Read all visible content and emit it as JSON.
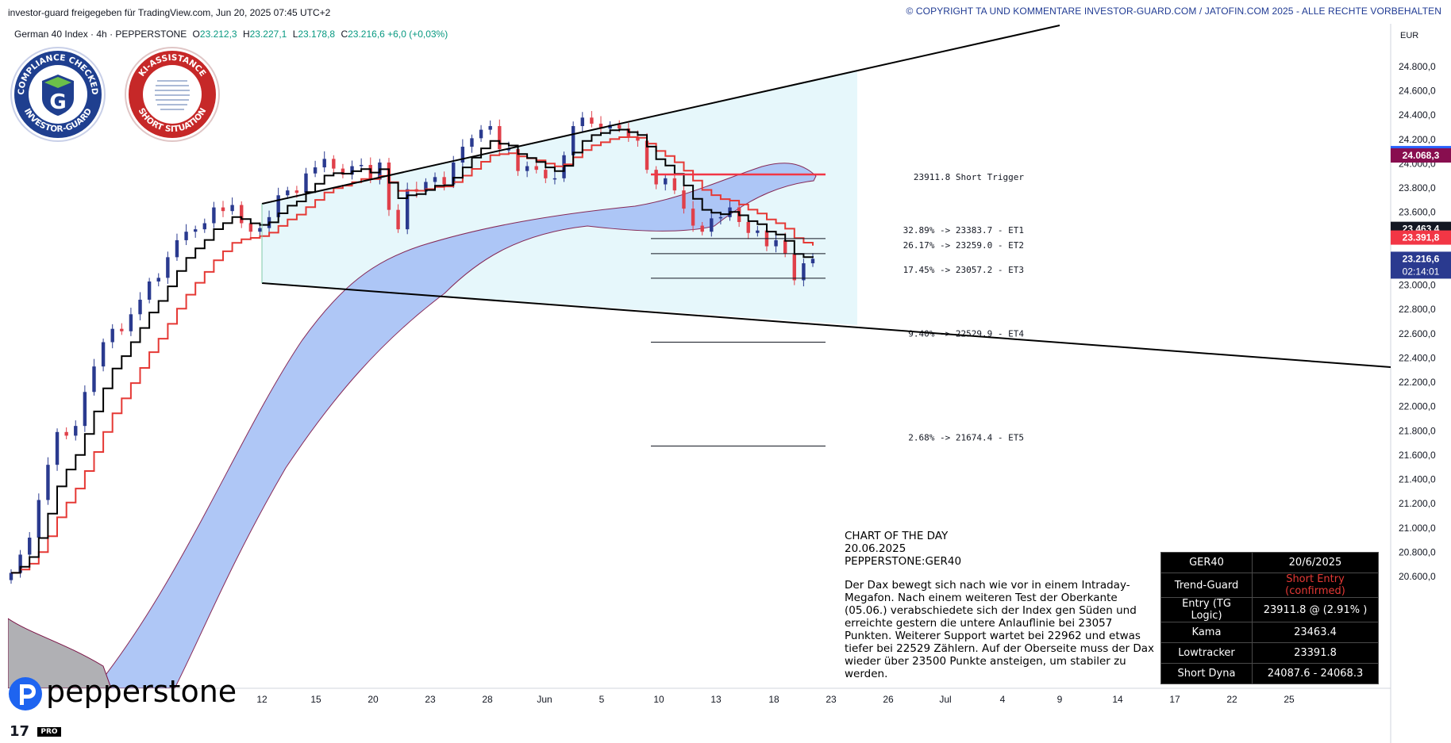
{
  "header": {
    "published": "investor-guard freigegeben für TradingView.com, Jun 20, 2025 07:45 UTC+2",
    "copyright": "© COPYRIGHT TA UND KOMMENTARE INVESTOR-GUARD.COM / JATOFIN.COM 2025 - ALLE RECHTE VORBEHALTEN"
  },
  "legend": {
    "symbol": "German 40 Index · 4h · PEPPERSTONE",
    "o_label": "O",
    "o": "23.212,3",
    "h_label": "H",
    "h": "23.227,1",
    "l_label": "L",
    "l": "23.178,8",
    "c_label": "C",
    "c": "23.216,6",
    "change": "+6,0 (+0,03%)"
  },
  "badges": {
    "left_top": "COMPLIANCE CHECKED",
    "left_bottom": "INVESTOR-GUARD",
    "left_letter": "G",
    "right_top": "KI-ASSISTANCE",
    "right_bottom": "SHORT SITUATION"
  },
  "chart_data": {
    "type": "line",
    "currency": "EUR",
    "instrument": "German 40 Index · 4h · PEPPERSTONE",
    "ylim": [
      20550,
      24900
    ],
    "price_ticks": [
      "24.800,0",
      "24.600,0",
      "24.400,0",
      "24.200,0",
      "24.000,0",
      "23.800,0",
      "23.600,0",
      "23.400,0",
      "23.200,0",
      "23.000,0",
      "22.800,0",
      "22.600,0",
      "22.400,0",
      "22.200,0",
      "22.000,0",
      "21.800,0",
      "21.600,0",
      "21.400,0",
      "21.200,0",
      "21.000,0",
      "20.800,0",
      "20.600,0"
    ],
    "price_tick_values": [
      24800,
      24600,
      24400,
      24200,
      24000,
      23800,
      23600,
      23400,
      23200,
      23000,
      22800,
      22600,
      22400,
      22200,
      22000,
      21800,
      21600,
      21400,
      21200,
      21000,
      20800,
      20600
    ],
    "time_ticks": [
      "12",
      "15",
      "20",
      "23",
      "28",
      "Jun",
      "5",
      "10",
      "13",
      "18",
      "23",
      "26",
      "Jul",
      "4",
      "9",
      "14",
      "17",
      "22",
      "25"
    ],
    "price_badges": [
      {
        "value": 24087.6,
        "label": "24.087,6",
        "color": "#2962ff"
      },
      {
        "value": 24068.3,
        "label": "24.068,3",
        "color": "#880e4f"
      },
      {
        "value": 23463.4,
        "label": "23.463,4",
        "color": "#131722"
      },
      {
        "value": 23391.8,
        "label": "23.391,8",
        "color": "#f23645"
      },
      {
        "value": 23216.6,
        "label": "23.216,6",
        "sub": "02:14:01",
        "color": "#2a3a8f"
      }
    ],
    "levels": [
      {
        "value": 23911.8,
        "label": "23911.8  Short Trigger",
        "color": "#f23645"
      },
      {
        "value": 23383.7,
        "label": "32.89% -> 23383.7 - ET1",
        "color": "#131722"
      },
      {
        "value": 23259.0,
        "label": "26.17% -> 23259.0 - ET2",
        "color": "#131722"
      },
      {
        "value": 23057.2,
        "label": "17.45% -> 23057.2 - ET3",
        "color": "#131722"
      },
      {
        "value": 22529.9,
        "label": "9.40% -> 22529.9 - ET4",
        "color": "#131722"
      },
      {
        "value": 21674.4,
        "label": "2.68% -> 21674.4 - ET5",
        "color": "#131722"
      }
    ],
    "series": [
      {
        "name": "",
        "values": [
          20630,
          20780,
          20920,
          21230,
          21520,
          21790,
          21760,
          21840,
          22120,
          22330,
          22530,
          22640,
          22620,
          22760,
          22880,
          23030,
          23060,
          23230,
          23370,
          23440,
          23460,
          23510,
          23640,
          23610,
          23660,
          23510,
          23440,
          23470,
          23560,
          23740,
          23780,
          23760,
          23920,
          23970,
          24040,
          23960,
          23910,
          23980,
          23990,
          23870,
          24010,
          23620,
          23460,
          23790,
          23770,
          23850,
          23890,
          23830,
          24010,
          24140,
          24210,
          24280,
          24310,
          24120,
          24120,
          23940,
          23980,
          23950,
          23880,
          23880,
          24070,
          24310,
          24380,
          24330,
          24290,
          24320,
          24290,
          24220,
          24190,
          23950,
          23830,
          23880,
          23780,
          23630,
          23490,
          23440,
          23550,
          23560,
          23640,
          23520,
          23430,
          23450,
          23320,
          23370,
          23260,
          23040,
          23180,
          23217
        ]
      }
    ]
  },
  "commentary": {
    "title": "CHART OF THE DAY",
    "date": "20.06.2025",
    "symbol": "PEPPERSTONE:GER40",
    "body": "Der Dax bewegt sich nach wie vor in einem Intraday-Megafon. Nach einem weiteren Test der Oberkante (05.06.) verabschiedete sich der Index gen Süden und erreichte gestern die untere Anlauflinie bei 23057 Punkten. Weiterer Support wartet bei 22962 und etwas tiefer bei 22529 Zählern. Auf der Oberseite muss der Dax wieder über 23500 Punkte ansteigen, um stabiler zu werden."
  },
  "table": {
    "h1": "GER40",
    "h2": "20/6/2025",
    "r1l": "Trend-Guard",
    "r1r": "Short Entry (confirmed)",
    "r2l": "Entry (TG Logic)",
    "r2r": "23911.8 @ (2.91% )",
    "r3l": "Kama",
    "r3r": "23463.4",
    "r4l": "Lowtracker",
    "r4r": "23391.8",
    "r5l": "Short Dyna",
    "r5r": "24087.6 - 24068.3"
  },
  "branding": {
    "pepperstone": "pepperstone",
    "tv": "17",
    "tv_pro": "PRO"
  }
}
